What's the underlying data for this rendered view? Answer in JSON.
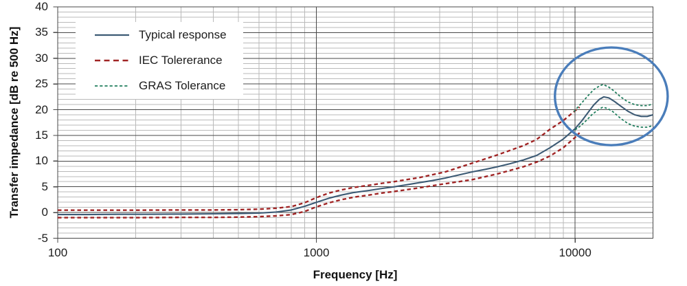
{
  "chart_data": {
    "type": "line",
    "title": "",
    "xlabel": "Frequency [Hz]",
    "ylabel": "Transfer impedance [dB re 500 Hz]",
    "x_scale": "log",
    "xlim": [
      100,
      20000
    ],
    "ylim": [
      -5,
      40
    ],
    "y_major_step": 5,
    "y_minor_step": 1,
    "grid": "major+minor",
    "legend_position": "top-left-inside",
    "x_tick_values": [
      100,
      1000,
      10000
    ],
    "x_tick_labels": [
      "100",
      "1000",
      "10000"
    ],
    "y_tick_values": [
      40,
      35,
      30,
      25,
      20,
      15,
      10,
      5,
      0,
      -5
    ],
    "y_tick_labels": [
      "40",
      "35",
      "30",
      "25",
      "20",
      "15",
      "10",
      "5",
      "0",
      "-5"
    ],
    "series": [
      {
        "name": "Typical response",
        "color": "#3C5A74",
        "dash": "solid",
        "lines": [
          [
            [
              100,
              -0.4
            ],
            [
              130,
              -0.4
            ],
            [
              170,
              -0.35
            ],
            [
              220,
              -0.35
            ],
            [
              300,
              -0.3
            ],
            [
              400,
              -0.25
            ],
            [
              500,
              -0.2
            ],
            [
              600,
              -0.1
            ],
            [
              700,
              0.1
            ],
            [
              800,
              0.5
            ],
            [
              900,
              1.2
            ],
            [
              1000,
              2.0
            ],
            [
              1120,
              2.8
            ],
            [
              1250,
              3.4
            ],
            [
              1400,
              3.9
            ],
            [
              1600,
              4.3
            ],
            [
              1800,
              4.7
            ],
            [
              2000,
              5.0
            ],
            [
              2240,
              5.4
            ],
            [
              2500,
              5.8
            ],
            [
              2800,
              6.2
            ],
            [
              3150,
              6.7
            ],
            [
              3550,
              7.3
            ],
            [
              4000,
              7.9
            ],
            [
              4500,
              8.4
            ],
            [
              5000,
              8.9
            ],
            [
              5600,
              9.5
            ],
            [
              6300,
              10.2
            ],
            [
              7100,
              11.1
            ],
            [
              8000,
              12.6
            ],
            [
              9000,
              14.3
            ],
            [
              10000,
              16.3
            ],
            [
              10600,
              17.8
            ],
            [
              11200,
              19.4
            ],
            [
              11800,
              20.9
            ],
            [
              12400,
              22.0
            ],
            [
              12900,
              22.5
            ],
            [
              13500,
              22.3
            ],
            [
              14200,
              21.6
            ],
            [
              15000,
              20.7
            ],
            [
              16000,
              19.7
            ],
            [
              17000,
              19.0
            ],
            [
              18000,
              18.7
            ],
            [
              19000,
              18.7
            ],
            [
              20000,
              19.0
            ]
          ]
        ]
      },
      {
        "name": "IEC Tolererance",
        "color": "#A02424",
        "dash": "long-dash",
        "lines": [
          [
            [
              100,
              0.45
            ],
            [
              200,
              0.45
            ],
            [
              300,
              0.5
            ],
            [
              400,
              0.5
            ],
            [
              500,
              0.55
            ],
            [
              600,
              0.65
            ],
            [
              700,
              0.85
            ],
            [
              800,
              1.15
            ],
            [
              900,
              1.9
            ],
            [
              1000,
              2.9
            ],
            [
              1120,
              3.8
            ],
            [
              1250,
              4.4
            ],
            [
              1400,
              4.9
            ],
            [
              1600,
              5.3
            ],
            [
              1800,
              5.7
            ],
            [
              2000,
              6.0
            ],
            [
              2500,
              6.8
            ],
            [
              3150,
              7.9
            ],
            [
              4000,
              9.6
            ],
            [
              5000,
              11.2
            ],
            [
              6300,
              13.0
            ],
            [
              7100,
              14.2
            ],
            [
              8000,
              16.2
            ],
            [
              9000,
              17.9
            ],
            [
              10000,
              19.8
            ],
            [
              10400,
              20.5
            ]
          ],
          [
            [
              100,
              -1.0
            ],
            [
              200,
              -1.0
            ],
            [
              300,
              -0.95
            ],
            [
              400,
              -0.95
            ],
            [
              500,
              -0.9
            ],
            [
              600,
              -0.8
            ],
            [
              700,
              -0.65
            ],
            [
              800,
              -0.4
            ],
            [
              900,
              0.2
            ],
            [
              1000,
              1.1
            ],
            [
              1120,
              1.9
            ],
            [
              1250,
              2.5
            ],
            [
              1400,
              3.0
            ],
            [
              1600,
              3.4
            ],
            [
              1800,
              3.8
            ],
            [
              2000,
              4.1
            ],
            [
              2500,
              4.8
            ],
            [
              3150,
              5.6
            ],
            [
              4000,
              6.4
            ],
            [
              5000,
              7.5
            ],
            [
              6300,
              8.9
            ],
            [
              7100,
              9.8
            ],
            [
              8000,
              11.0
            ],
            [
              9000,
              12.6
            ],
            [
              10000,
              14.6
            ],
            [
              10400,
              15.5
            ]
          ]
        ]
      },
      {
        "name": "GRAS Tolerance",
        "color": "#1F7D5C",
        "dash": "short-dash",
        "lines": [
          [
            [
              9900,
              19.6
            ],
            [
              10200,
              20.4
            ],
            [
              10600,
              21.3
            ],
            [
              11200,
              22.7
            ],
            [
              11800,
              23.9
            ],
            [
              12400,
              24.6
            ],
            [
              12800,
              24.9
            ],
            [
              13400,
              24.5
            ],
            [
              14000,
              23.8
            ],
            [
              15000,
              22.5
            ],
            [
              16000,
              21.5
            ],
            [
              17000,
              21.0
            ],
            [
              18000,
              20.8
            ],
            [
              19000,
              20.8
            ],
            [
              20000,
              21.1
            ]
          ],
          [
            [
              10000,
              16.1
            ],
            [
              10400,
              16.7
            ],
            [
              11000,
              17.8
            ],
            [
              11600,
              19.0
            ],
            [
              12200,
              19.9
            ],
            [
              12800,
              20.5
            ],
            [
              13400,
              20.2
            ],
            [
              14000,
              19.6
            ],
            [
              15000,
              18.3
            ],
            [
              16000,
              17.3
            ],
            [
              17000,
              16.8
            ],
            [
              18000,
              16.6
            ],
            [
              19000,
              16.6
            ],
            [
              20000,
              16.9
            ]
          ]
        ]
      }
    ],
    "annotation": {
      "shape": "ellipse",
      "purpose": "highlights resonance-peak region",
      "color": "#4A7DBA",
      "center_hz": 13800,
      "center_db": 22.6,
      "radius_decades": 0.218,
      "radius_db": 9.5
    }
  }
}
